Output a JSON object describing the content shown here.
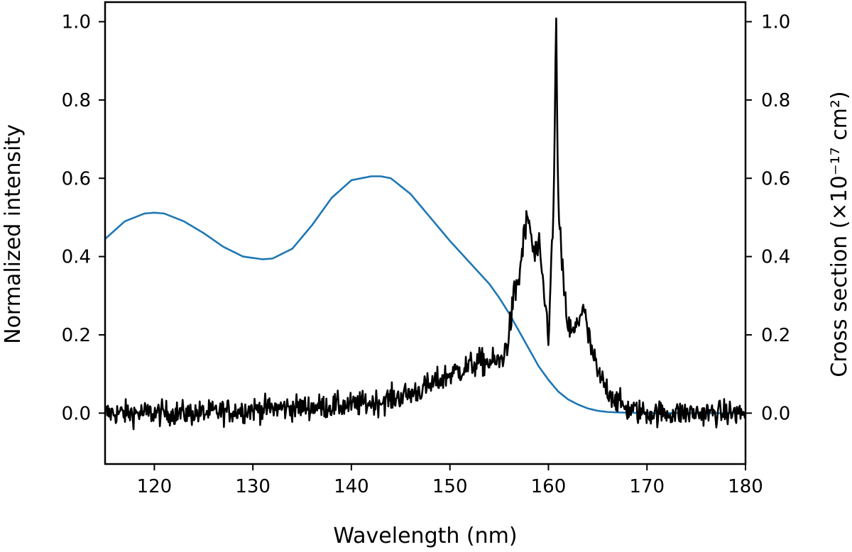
{
  "chart_data": {
    "type": "line",
    "title": "",
    "xlabel": "Wavelength (nm)",
    "ylabel": "Normalized intensity",
    "ylabel_right": "Cross section (×10⁻¹⁷ cm²)",
    "xlim": [
      115,
      180
    ],
    "ylim": [
      -0.13,
      1.05
    ],
    "ylim_right": [
      -0.13,
      1.05
    ],
    "xticks": [
      120,
      130,
      140,
      150,
      160,
      170,
      180
    ],
    "yticks": [
      0.0,
      0.2,
      0.4,
      0.6,
      0.8,
      1.0
    ],
    "ytick_labels": [
      "0.0",
      "0.2",
      "0.4",
      "0.6",
      "0.8",
      "1.0"
    ],
    "yticks_right": [
      0.0,
      0.2,
      0.4,
      0.6,
      0.8,
      1.0
    ],
    "ytick_labels_right": [
      "0.0",
      "0.2",
      "0.4",
      "0.6",
      "0.8",
      "1.0"
    ],
    "grid": false,
    "series": [
      {
        "axis": "right",
        "color": "#1f77b4",
        "x": [
          115,
          117,
          119,
          120,
          121,
          123,
          125,
          127,
          129,
          131,
          132,
          134,
          136,
          138,
          140,
          142,
          143,
          144,
          146,
          148,
          150,
          152,
          154,
          155,
          156,
          157,
          158,
          159,
          160,
          161,
          162,
          163,
          164,
          165,
          166,
          168,
          170,
          175,
          180
        ],
        "y": [
          0.445,
          0.49,
          0.51,
          0.512,
          0.51,
          0.49,
          0.46,
          0.425,
          0.4,
          0.393,
          0.395,
          0.42,
          0.48,
          0.55,
          0.595,
          0.605,
          0.605,
          0.6,
          0.56,
          0.5,
          0.44,
          0.385,
          0.33,
          0.295,
          0.255,
          0.21,
          0.165,
          0.12,
          0.085,
          0.055,
          0.035,
          0.022,
          0.012,
          0.006,
          0.003,
          0.001,
          0.0,
          0.0,
          0.0
        ]
      },
      {
        "axis": "left",
        "color": "#000000",
        "noise": 0.03,
        "x": [
          115,
          120,
          125,
          130,
          135,
          140,
          143,
          146,
          148,
          150,
          152,
          153,
          154,
          155,
          155.5,
          156,
          156.5,
          157,
          157.5,
          158,
          158.5,
          159,
          159.5,
          160,
          160.5,
          160.8,
          161,
          161.5,
          162,
          162.5,
          163,
          163.5,
          164,
          164.5,
          165,
          166,
          167,
          168,
          170,
          175,
          180
        ],
        "y": [
          0.0,
          0.0,
          0.0,
          0.01,
          0.015,
          0.02,
          0.03,
          0.05,
          0.07,
          0.1,
          0.12,
          0.13,
          0.13,
          0.13,
          0.15,
          0.2,
          0.3,
          0.34,
          0.45,
          0.5,
          0.4,
          0.42,
          0.32,
          0.2,
          0.5,
          1.0,
          0.52,
          0.33,
          0.22,
          0.2,
          0.23,
          0.28,
          0.2,
          0.15,
          0.1,
          0.06,
          0.03,
          0.01,
          0.0,
          0.0,
          0.0
        ]
      }
    ]
  }
}
